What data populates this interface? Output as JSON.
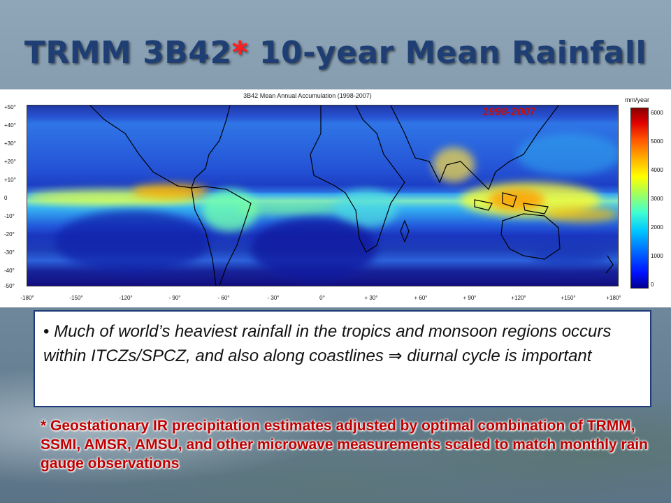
{
  "slide": {
    "title_main": "TRMM 3B42",
    "title_star": "*",
    "title_rest": " 10-year Mean Rainfall"
  },
  "figure": {
    "title": "3B42 Mean Annual Accumulation (1998-2007)",
    "year_label": "1998-2007",
    "colorbar_unit": "mm/year",
    "colorbar_ticks": [
      "6000",
      "5000",
      "4000",
      "3000",
      "2000",
      "1000",
      "0"
    ],
    "lat_ticks": [
      "+50°",
      "+40°",
      "+30°",
      "+20°",
      "+10°",
      "0",
      "-10°",
      "-20°",
      "-30°",
      "-40°",
      "-50°"
    ],
    "lon_ticks": [
      "-180°",
      "-150°",
      "-120°",
      "- 90°",
      "- 60°",
      "- 30°",
      "0°",
      "+ 30°",
      "+ 60°",
      "+ 90°",
      "+120°",
      "+150°",
      "+180°"
    ]
  },
  "note": {
    "bullet": "•",
    "text_before_arrow": "Much of world’s heaviest rainfall in the tropics and monsoon regions occurs within ITCZs/SPCZ, and also along coastlines ",
    "arrow": "⇒",
    "text_after_arrow": " diurnal cycle is important"
  },
  "footnote": {
    "text": "*  Geostationary IR precipitation estimates adjusted by optimal combination of TRMM, SSMI, AMSR, AMSU, and other microwave measurements scaled to match monthly rain gauge observations"
  }
}
